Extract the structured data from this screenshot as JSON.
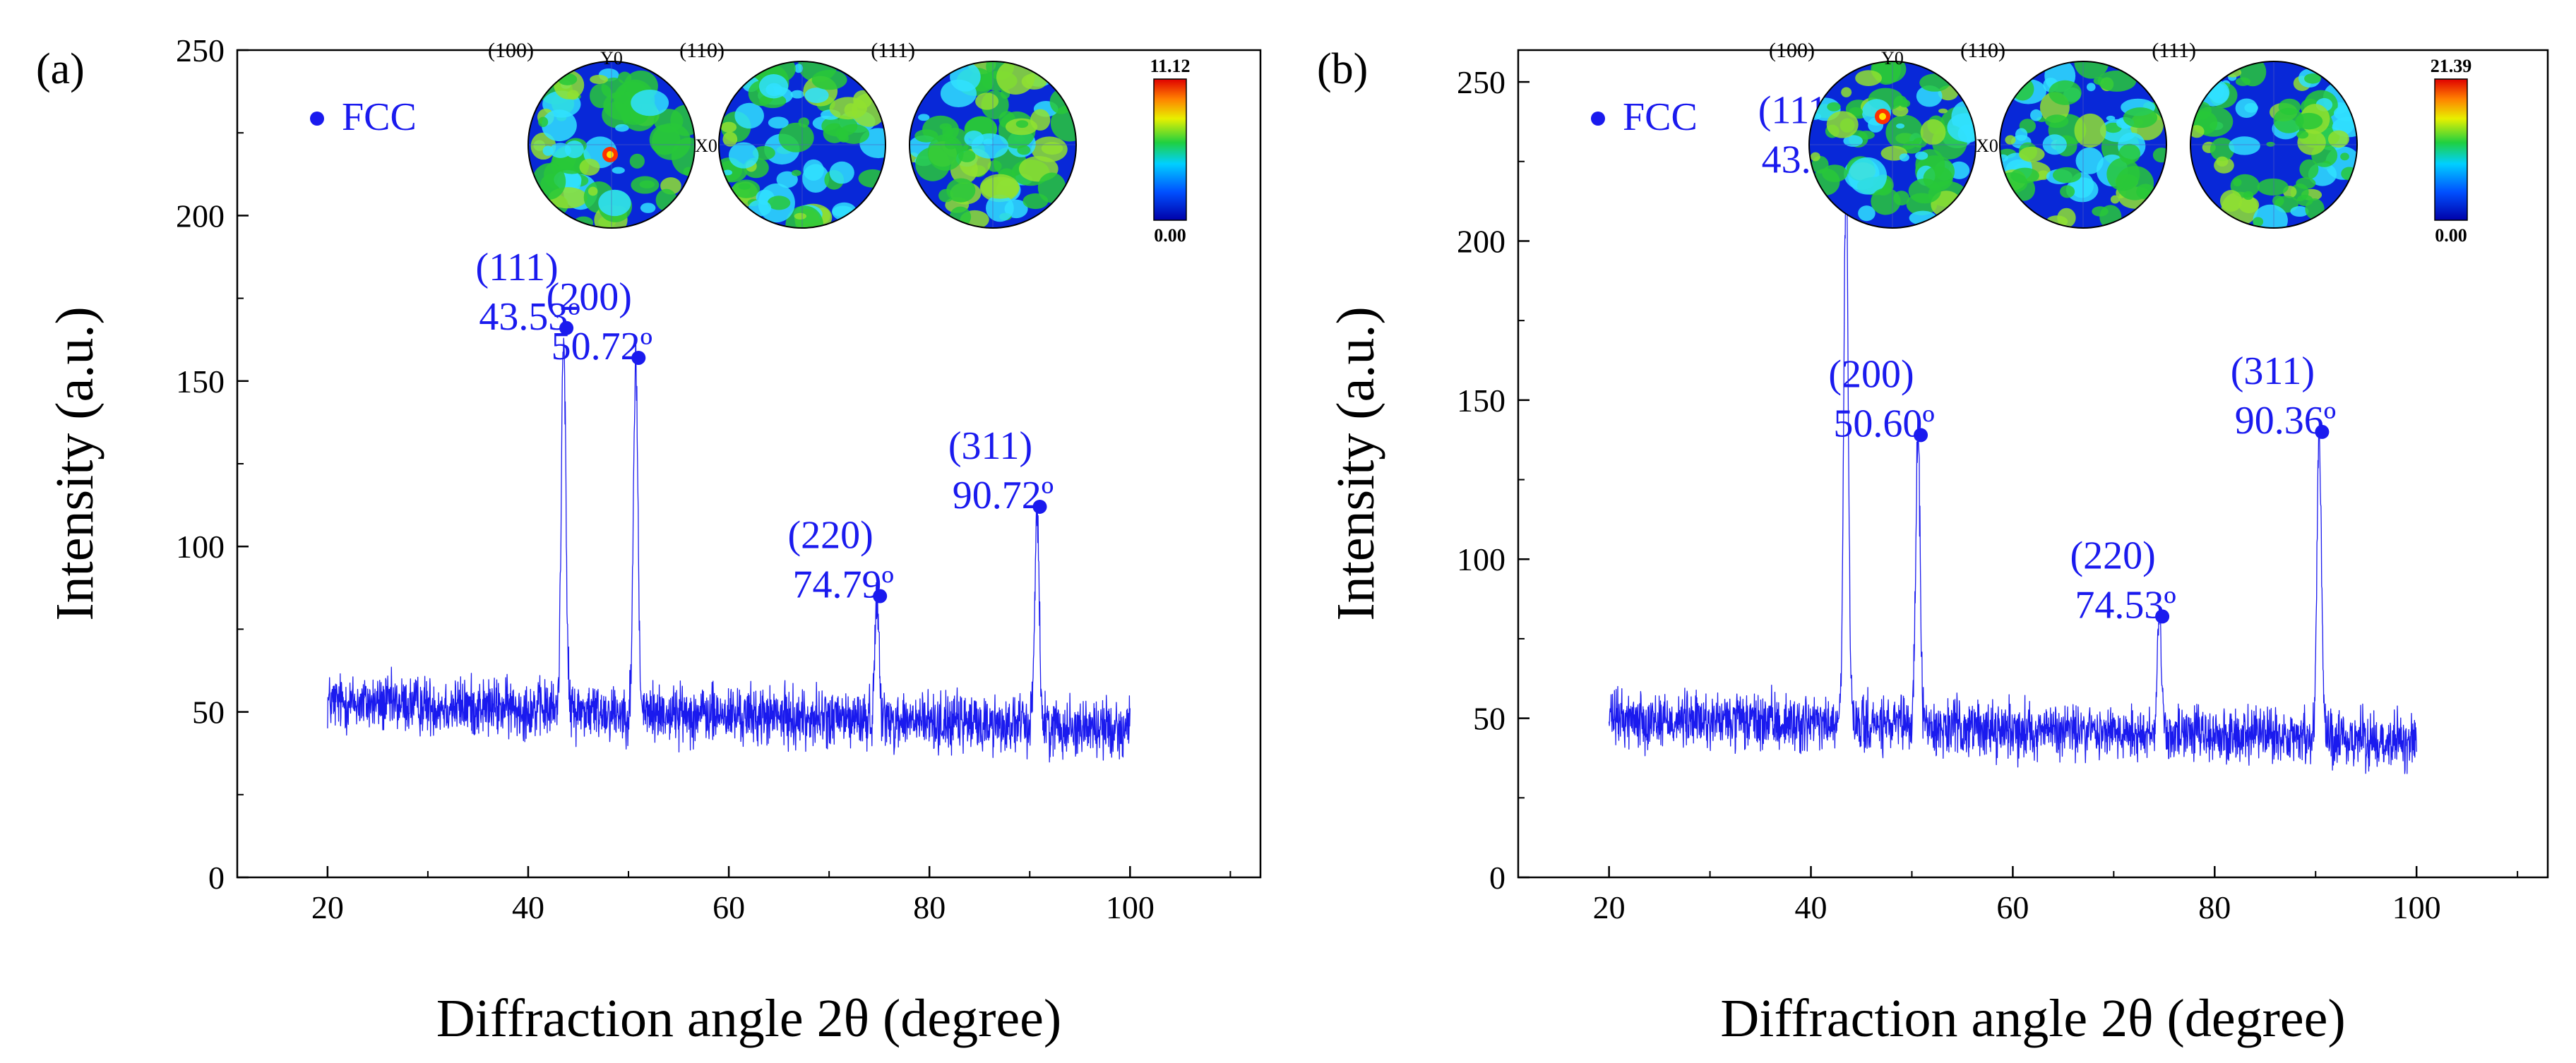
{
  "colors": {
    "series": "#1a1aee",
    "axis": "#000000",
    "label": "#1a1aee"
  },
  "chart_data": [
    {
      "type": "line",
      "panel_label": "(a)",
      "xlabel": "Diffraction angle 2θ (degree)",
      "ylabel": "Intensity (a.u.)",
      "xlim": [
        11,
        113
      ],
      "ylim": [
        0,
        250
      ],
      "xticks": [
        20,
        40,
        60,
        80,
        100
      ],
      "yticks": [
        0,
        50,
        100,
        150,
        200,
        250
      ],
      "legend": {
        "label": "FCC",
        "placement": "top-left"
      },
      "series": [
        {
          "name": "FCC",
          "x_range": [
            20,
            100
          ],
          "baseline": 53,
          "baseline_end": 45,
          "noise": 13,
          "peaks": [
            {
              "x": 43.53,
              "y": 166,
              "hkl": "(111)",
              "label": "43.53º"
            },
            {
              "x": 50.72,
              "y": 157,
              "hkl": "(200)",
              "label": "50.72º"
            },
            {
              "x": 74.79,
              "y": 85,
              "hkl": "(220)",
              "label": "74.79º"
            },
            {
              "x": 90.72,
              "y": 112,
              "hkl": "(311)",
              "label": "90.72º"
            }
          ]
        }
      ],
      "inset": {
        "pole_figures": [
          "(100)",
          "(110)",
          "(111)"
        ],
        "axis_labels": [
          "Y0",
          "X0"
        ],
        "colorbar_max": "11.12",
        "colorbar_min": "0.00"
      }
    },
    {
      "type": "line",
      "panel_label": "(b)",
      "xlabel": "Diffraction angle 2θ (degree)",
      "ylabel": "Intensity (a.u.)",
      "xlim": [
        11,
        113
      ],
      "ylim": [
        0,
        260
      ],
      "xticks": [
        20,
        40,
        60,
        80,
        100
      ],
      "yticks": [
        0,
        50,
        100,
        150,
        200,
        250
      ],
      "legend": {
        "label": "FCC",
        "placement": "top-left"
      },
      "series": [
        {
          "name": "FCC",
          "x_range": [
            20,
            100
          ],
          "baseline": 50,
          "baseline_end": 43,
          "noise": 13,
          "peaks": [
            {
              "x": 43.48,
              "y": 222,
              "hkl": "(111)",
              "label": "43.48º"
            },
            {
              "x": 50.6,
              "y": 139,
              "hkl": "(200)",
              "label": "50.60º"
            },
            {
              "x": 74.53,
              "y": 82,
              "hkl": "(220)",
              "label": "74.53º"
            },
            {
              "x": 90.36,
              "y": 140,
              "hkl": "(311)",
              "label": "90.36º"
            }
          ]
        }
      ],
      "inset": {
        "pole_figures": [
          "(100)",
          "(110)",
          "(111)"
        ],
        "axis_labels": [
          "Y0",
          "X0"
        ],
        "colorbar_max": "21.39",
        "colorbar_min": "0.00"
      }
    }
  ]
}
